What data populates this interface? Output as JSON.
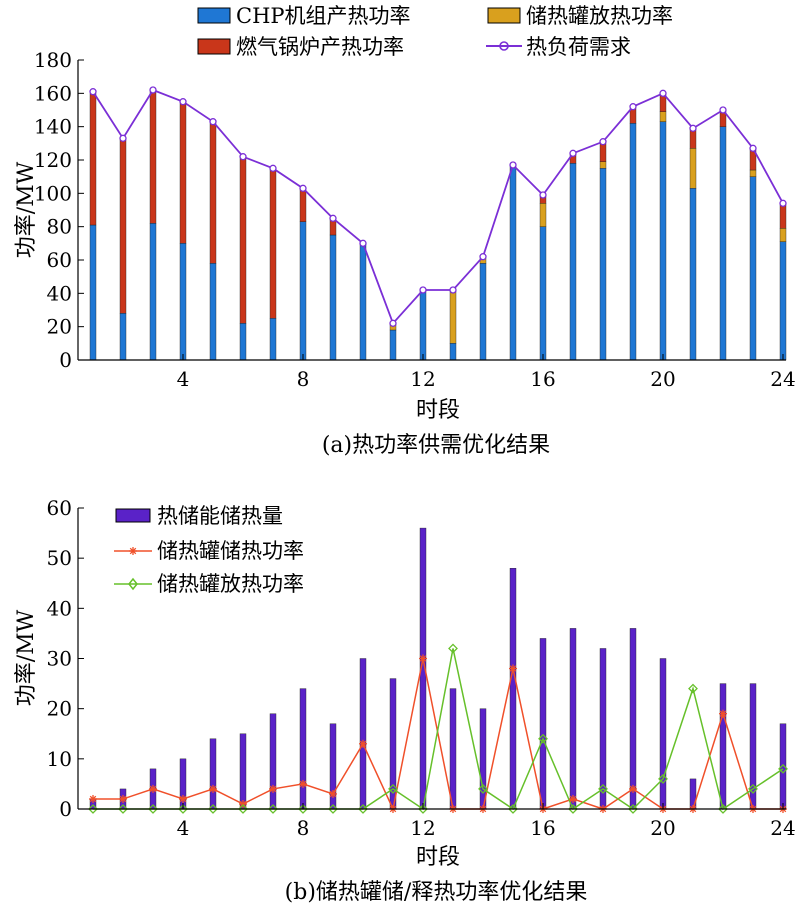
{
  "colors": {
    "chp": "#1f77d4",
    "boiler": "#c9361a",
    "release": "#d9a01e",
    "demand": "#7b2fd6",
    "storage": "#5a22c8",
    "charge": "#f0502a",
    "discharge": "#66c02a",
    "axis": "#000000"
  },
  "chart_data": [
    {
      "type": "bar",
      "stacked": true,
      "caption": "(a)热功率供需优化结果",
      "xlabel": "时段",
      "ylabel": "功率/MW",
      "xlim": [
        0.5,
        24.1
      ],
      "ylim": [
        0,
        180
      ],
      "xticks": [
        4,
        8,
        12,
        16,
        20,
        24
      ],
      "yticks": [
        0,
        20,
        40,
        60,
        80,
        100,
        120,
        140,
        160,
        180
      ],
      "grid": false,
      "legend_position": "top",
      "x": [
        1,
        2,
        3,
        4,
        5,
        6,
        7,
        8,
        9,
        10,
        11,
        12,
        13,
        14,
        15,
        16,
        17,
        18,
        19,
        20,
        21,
        22,
        23,
        24
      ],
      "series": [
        {
          "name": "CHP机组产热功率",
          "kind": "bar",
          "color_key": "chp",
          "values": [
            81,
            28,
            82,
            70,
            58,
            22,
            25,
            83,
            75,
            70,
            18,
            42,
            10,
            58,
            116,
            80,
            118,
            115,
            142,
            143,
            103,
            140,
            110,
            71
          ]
        },
        {
          "name": "储热罐放热功率",
          "kind": "bar",
          "color_key": "release",
          "values": [
            0,
            0,
            0,
            0,
            0,
            0,
            0,
            0,
            0,
            0,
            4,
            0,
            32,
            4,
            0,
            14,
            0,
            4,
            0,
            6,
            24,
            0,
            4,
            8
          ]
        },
        {
          "name": "燃气锅炉产热功率",
          "kind": "bar",
          "color_key": "boiler",
          "values": [
            79,
            104,
            79,
            84,
            84,
            99,
            89,
            19,
            9,
            0,
            0,
            0,
            0,
            0,
            0,
            4,
            6,
            11,
            9,
            10,
            12,
            9,
            12,
            14
          ]
        },
        {
          "name": "热负荷需求",
          "kind": "line",
          "color_key": "demand",
          "values": [
            161,
            133,
            162,
            155,
            143,
            122,
            115,
            103,
            85,
            70,
            22,
            42,
            42,
            62,
            117,
            99,
            124,
            131,
            152,
            160,
            139,
            150,
            127,
            94
          ]
        }
      ]
    },
    {
      "type": "bar",
      "caption": "(b)储热罐储/释热功率优化结果",
      "xlabel": "时段",
      "ylabel": "功率/MW",
      "xlim": [
        0.5,
        24.1
      ],
      "ylim": [
        0,
        60
      ],
      "xticks": [
        4,
        8,
        12,
        16,
        20,
        24
      ],
      "yticks": [
        0,
        10,
        20,
        30,
        40,
        50,
        60
      ],
      "grid": false,
      "legend_position": "top-left",
      "x": [
        1,
        2,
        3,
        4,
        5,
        6,
        7,
        8,
        9,
        10,
        11,
        12,
        13,
        14,
        15,
        16,
        17,
        18,
        19,
        20,
        21,
        22,
        23,
        24
      ],
      "series": [
        {
          "name": "热储能储热量",
          "kind": "bar",
          "color_key": "storage",
          "values": [
            2,
            4,
            8,
            10,
            14,
            15,
            19,
            24,
            17,
            30,
            26,
            56,
            24,
            20,
            48,
            34,
            36,
            32,
            36,
            30,
            6,
            25,
            25,
            17
          ]
        },
        {
          "name": "储热罐储热功率",
          "kind": "line",
          "marker": "star",
          "color_key": "charge",
          "values": [
            2,
            2,
            4,
            2,
            4,
            1,
            4,
            5,
            3,
            13,
            0,
            30,
            0,
            0,
            28,
            0,
            2,
            0,
            4,
            0,
            0,
            19,
            0,
            0
          ]
        },
        {
          "name": "储热罐放热功率",
          "kind": "line",
          "marker": "diamond",
          "color_key": "discharge",
          "values": [
            0,
            0,
            0,
            0,
            0,
            0,
            0,
            0,
            0,
            0,
            4,
            0,
            32,
            4,
            0,
            14,
            0,
            4,
            0,
            6,
            24,
            0,
            4,
            8
          ]
        }
      ]
    }
  ]
}
